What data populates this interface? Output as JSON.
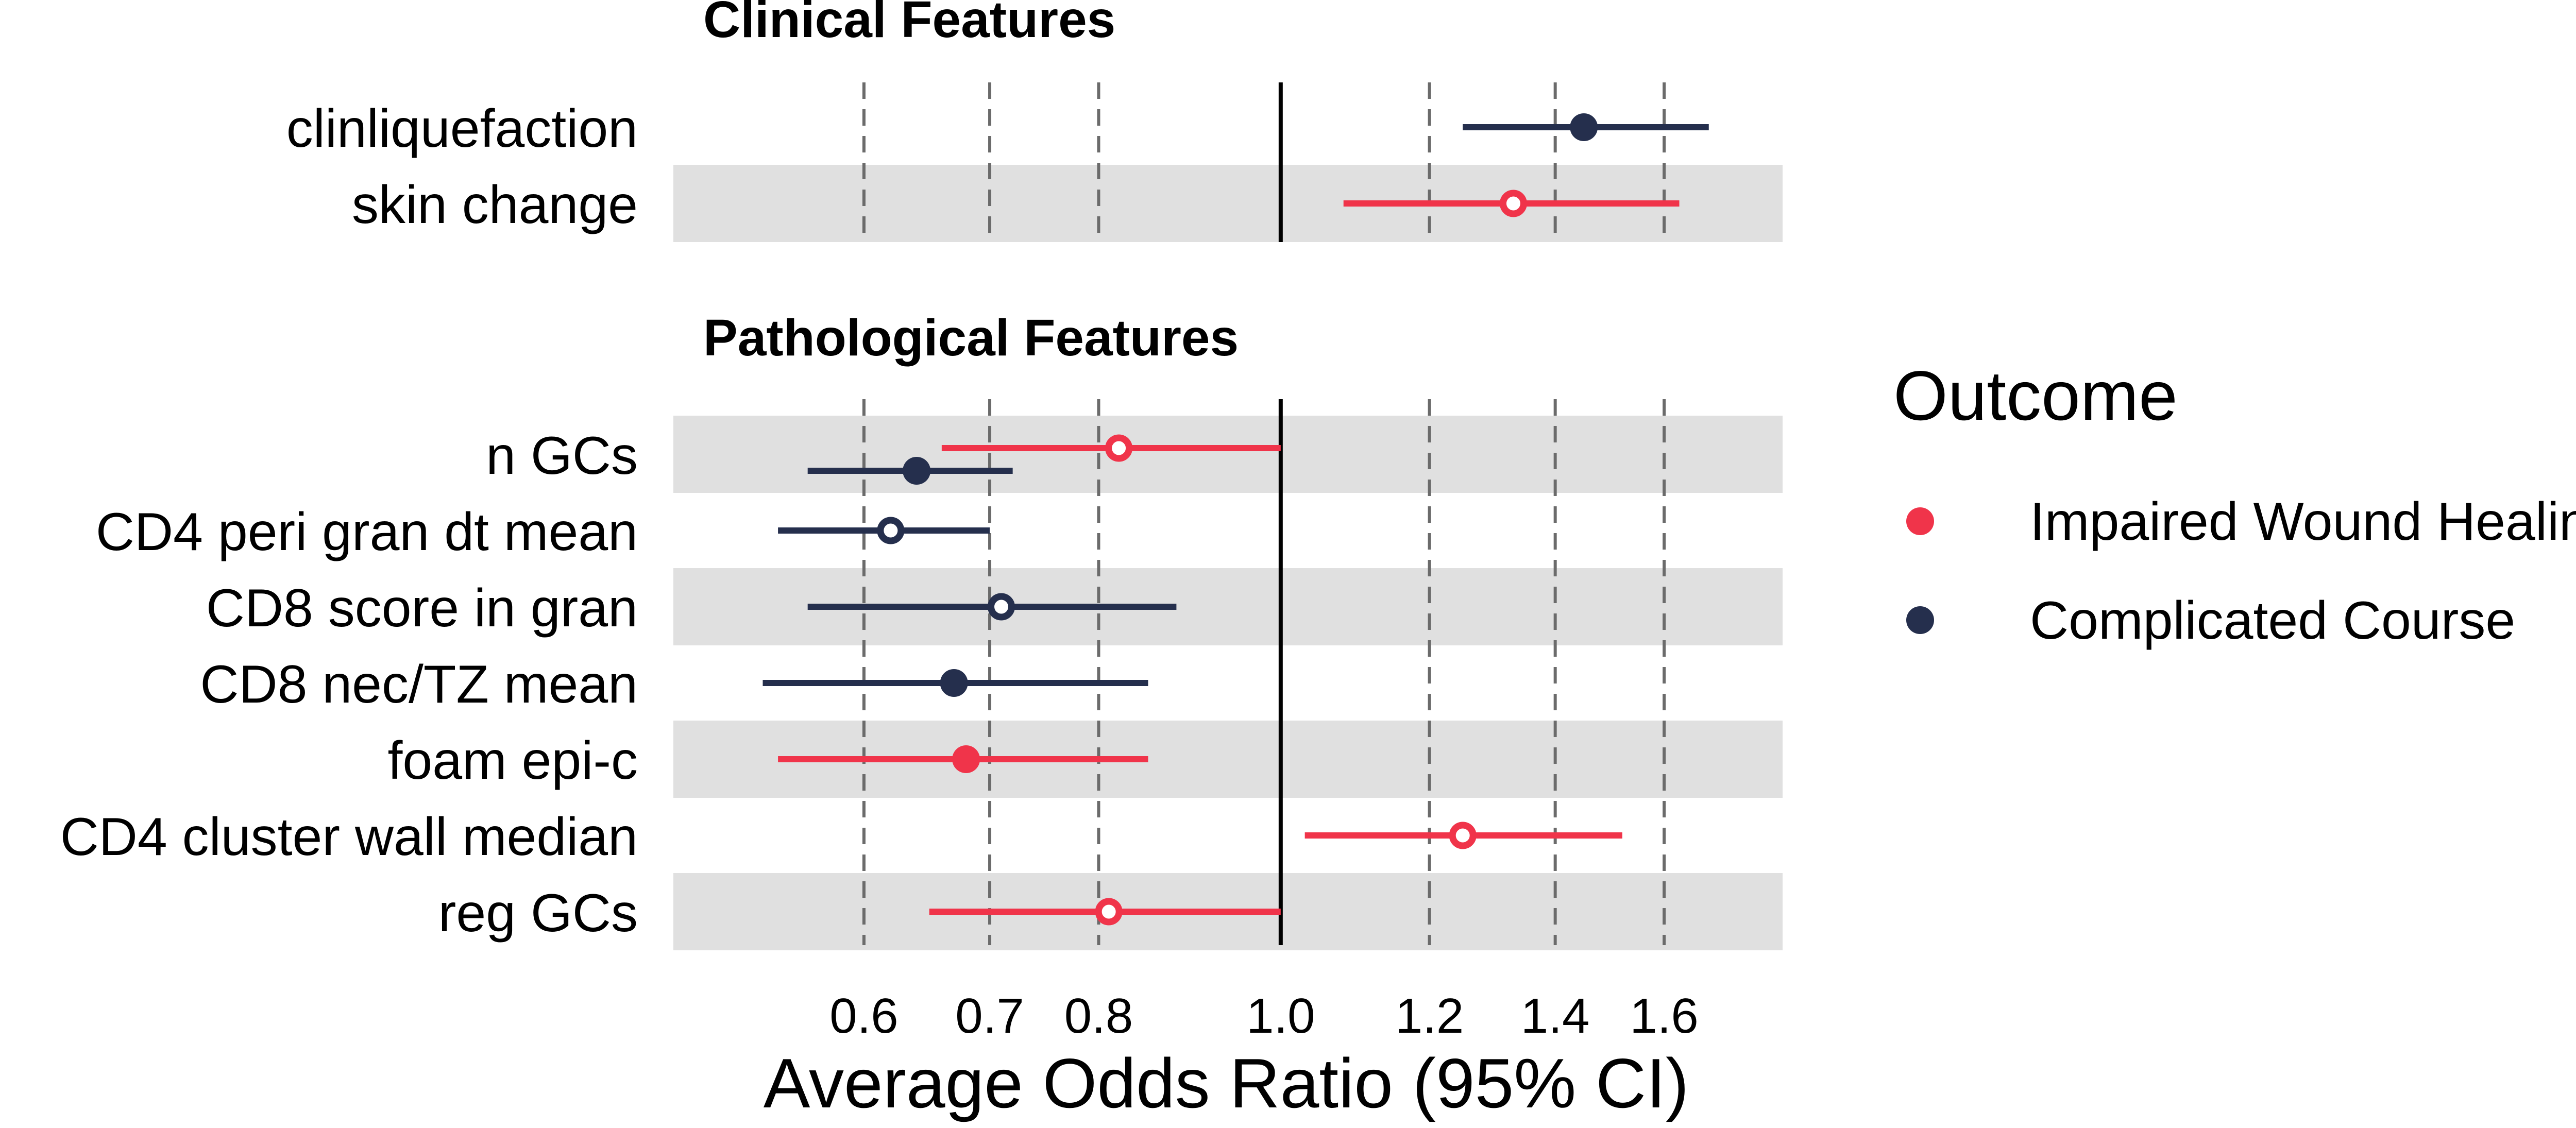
{
  "chart_data": {
    "type": "forest",
    "xlabel": "Average Odds Ratio (95% CI)",
    "x_scale": "log",
    "xlim": [
      0.475,
      1.85
    ],
    "x_ticks": [
      {
        "value": 0.6,
        "label": "0.6"
      },
      {
        "value": 0.7,
        "label": "0.7"
      },
      {
        "value": 0.8,
        "label": "0.8"
      },
      {
        "value": 1.0,
        "label": "1.0"
      },
      {
        "value": 1.2,
        "label": "1.2"
      },
      {
        "value": 1.4,
        "label": "1.4"
      },
      {
        "value": 1.6,
        "label": "1.6"
      }
    ],
    "reference_line": 1.0,
    "gridlines": "dashed vertical at ticks (except 1.0)",
    "legend": {
      "title": "Outcome",
      "placement": "right",
      "entries": [
        {
          "name": "Impaired Wound Healing",
          "color": "#f0344a"
        },
        {
          "name": "Complicated Course",
          "color": "#252f4d"
        }
      ]
    },
    "groups": [
      {
        "title": "Clinical Features",
        "rows": [
          {
            "label": "clinliquefaction",
            "outcome": "Complicated Course",
            "estimate": 1.45,
            "lower": 1.25,
            "upper": 1.69,
            "hollow": false
          },
          {
            "label": "skin change",
            "outcome": "Impaired Wound Healing",
            "estimate": 1.33,
            "lower": 1.08,
            "upper": 1.63,
            "hollow": true
          }
        ]
      },
      {
        "title": "Pathological Features",
        "rows": [
          {
            "label": "n GCs",
            "outcome": "Impaired Wound Healing",
            "estimate": 0.82,
            "lower": 0.66,
            "upper": 1.0,
            "hollow": true,
            "second": {
              "outcome": "Complicated Course",
              "estimate": 0.64,
              "lower": 0.56,
              "upper": 0.72,
              "hollow": false
            }
          },
          {
            "label": "CD4 peri gran dt mean",
            "outcome": "Complicated Course",
            "estimate": 0.62,
            "lower": 0.54,
            "upper": 0.7,
            "hollow": true
          },
          {
            "label": "CD8 score in gran",
            "outcome": "Complicated Course",
            "estimate": 0.71,
            "lower": 0.56,
            "upper": 0.88,
            "hollow": true
          },
          {
            "label": "CD8 nec/TZ mean",
            "outcome": "Complicated Course",
            "estimate": 0.67,
            "lower": 0.53,
            "upper": 0.85,
            "hollow": false
          },
          {
            "label": "foam epi-c",
            "outcome": "Impaired Wound Healing",
            "estimate": 0.68,
            "lower": 0.54,
            "upper": 0.85,
            "hollow": false
          },
          {
            "label": "CD4 cluster wall median",
            "outcome": "Impaired Wound Healing",
            "estimate": 1.25,
            "lower": 1.03,
            "upper": 1.52,
            "hollow": true
          },
          {
            "label": "reg GCs",
            "outcome": "Impaired Wound Healing",
            "estimate": 0.81,
            "lower": 0.65,
            "upper": 1.0,
            "hollow": true
          }
        ]
      }
    ]
  }
}
